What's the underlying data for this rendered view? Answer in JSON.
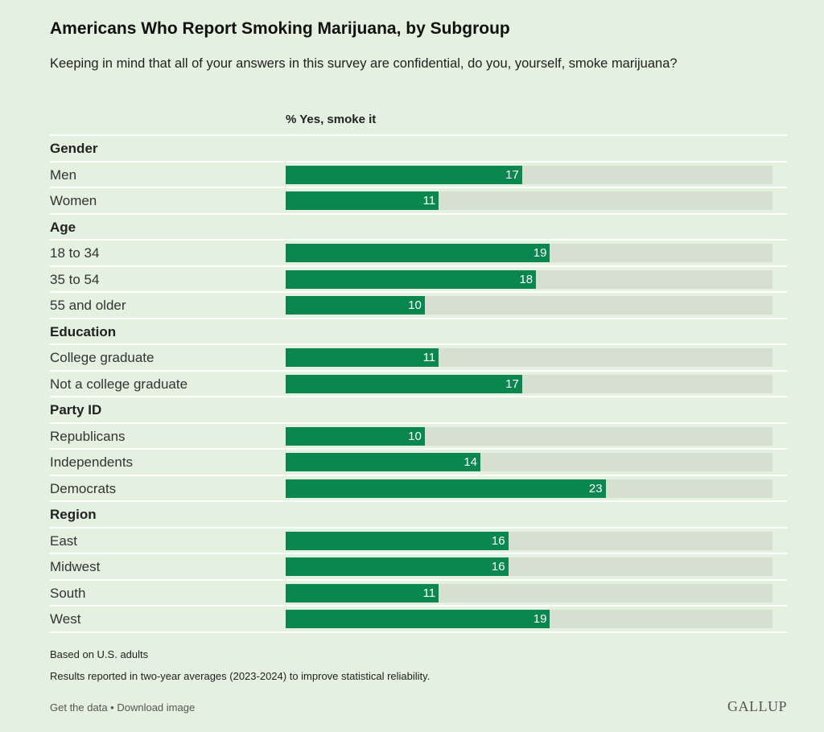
{
  "chart_data": {
    "type": "bar",
    "title": "Americans Who Report Smoking Marijuana, by Subgroup",
    "subtitle": "Keeping in mind that all of your answers in this survey are confidential, do you, yourself, smoke marijuana?",
    "column_header": "% Yes, smoke it",
    "xlim": [
      0,
      35
    ],
    "groups": [
      {
        "name": "Gender",
        "items": [
          {
            "label": "Men",
            "value": 17
          },
          {
            "label": "Women",
            "value": 11
          }
        ]
      },
      {
        "name": "Age",
        "items": [
          {
            "label": "18 to 34",
            "value": 19
          },
          {
            "label": "35 to 54",
            "value": 18
          },
          {
            "label": "55 and older",
            "value": 10
          }
        ]
      },
      {
        "name": "Education",
        "items": [
          {
            "label": "College graduate",
            "value": 11
          },
          {
            "label": "Not a college graduate",
            "value": 17
          }
        ]
      },
      {
        "name": "Party ID",
        "items": [
          {
            "label": "Republicans",
            "value": 10
          },
          {
            "label": "Independents",
            "value": 14
          },
          {
            "label": "Democrats",
            "value": 23
          }
        ]
      },
      {
        "name": "Region",
        "items": [
          {
            "label": "East",
            "value": 16
          },
          {
            "label": "Midwest",
            "value": 16
          },
          {
            "label": "South",
            "value": 11
          },
          {
            "label": "West",
            "value": 19
          }
        ]
      }
    ],
    "colors": {
      "bar": "#09874f",
      "track": "#d5e0d0",
      "background": "#e4f0e0"
    }
  },
  "notes": [
    "Based on U.S. adults",
    "Results reported in two-year averages (2023-2024) to improve statistical reliability."
  ],
  "links": {
    "get_data": "Get the data",
    "separator": " • ",
    "download": "Download image"
  },
  "logo": "GALLUP"
}
